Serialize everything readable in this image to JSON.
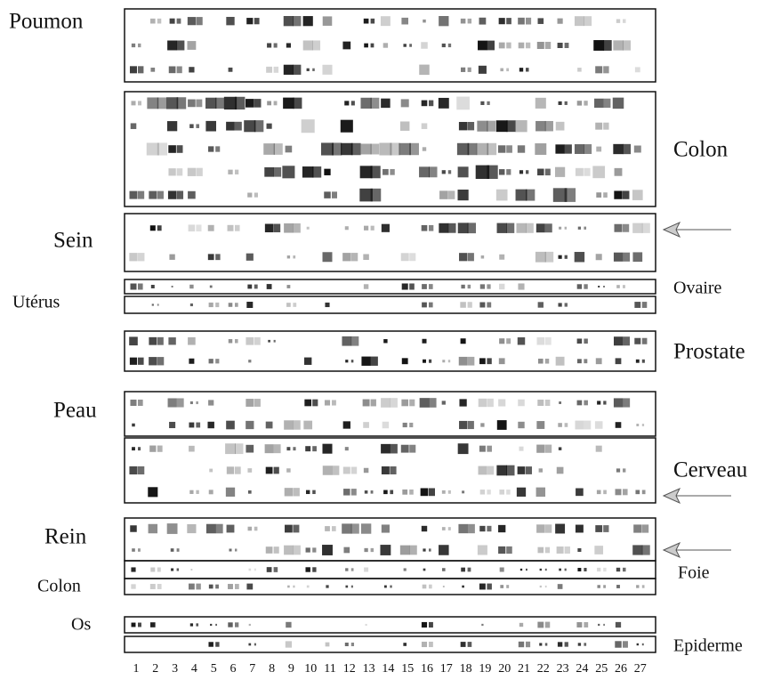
{
  "labels": [
    "Poumon",
    "Colon",
    "Sein",
    "Ovaire",
    "Utérus",
    "Prostate",
    "Peau",
    "Cerveau",
    "Rein",
    "Foie",
    "Colon",
    "Os",
    "Epiderme"
  ],
  "columns": [
    1,
    2,
    3,
    4,
    5,
    6,
    7,
    8,
    9,
    10,
    11,
    12,
    13,
    14,
    15,
    16,
    17,
    18,
    19,
    20,
    21,
    22,
    23,
    24,
    25,
    26,
    27
  ]
}
